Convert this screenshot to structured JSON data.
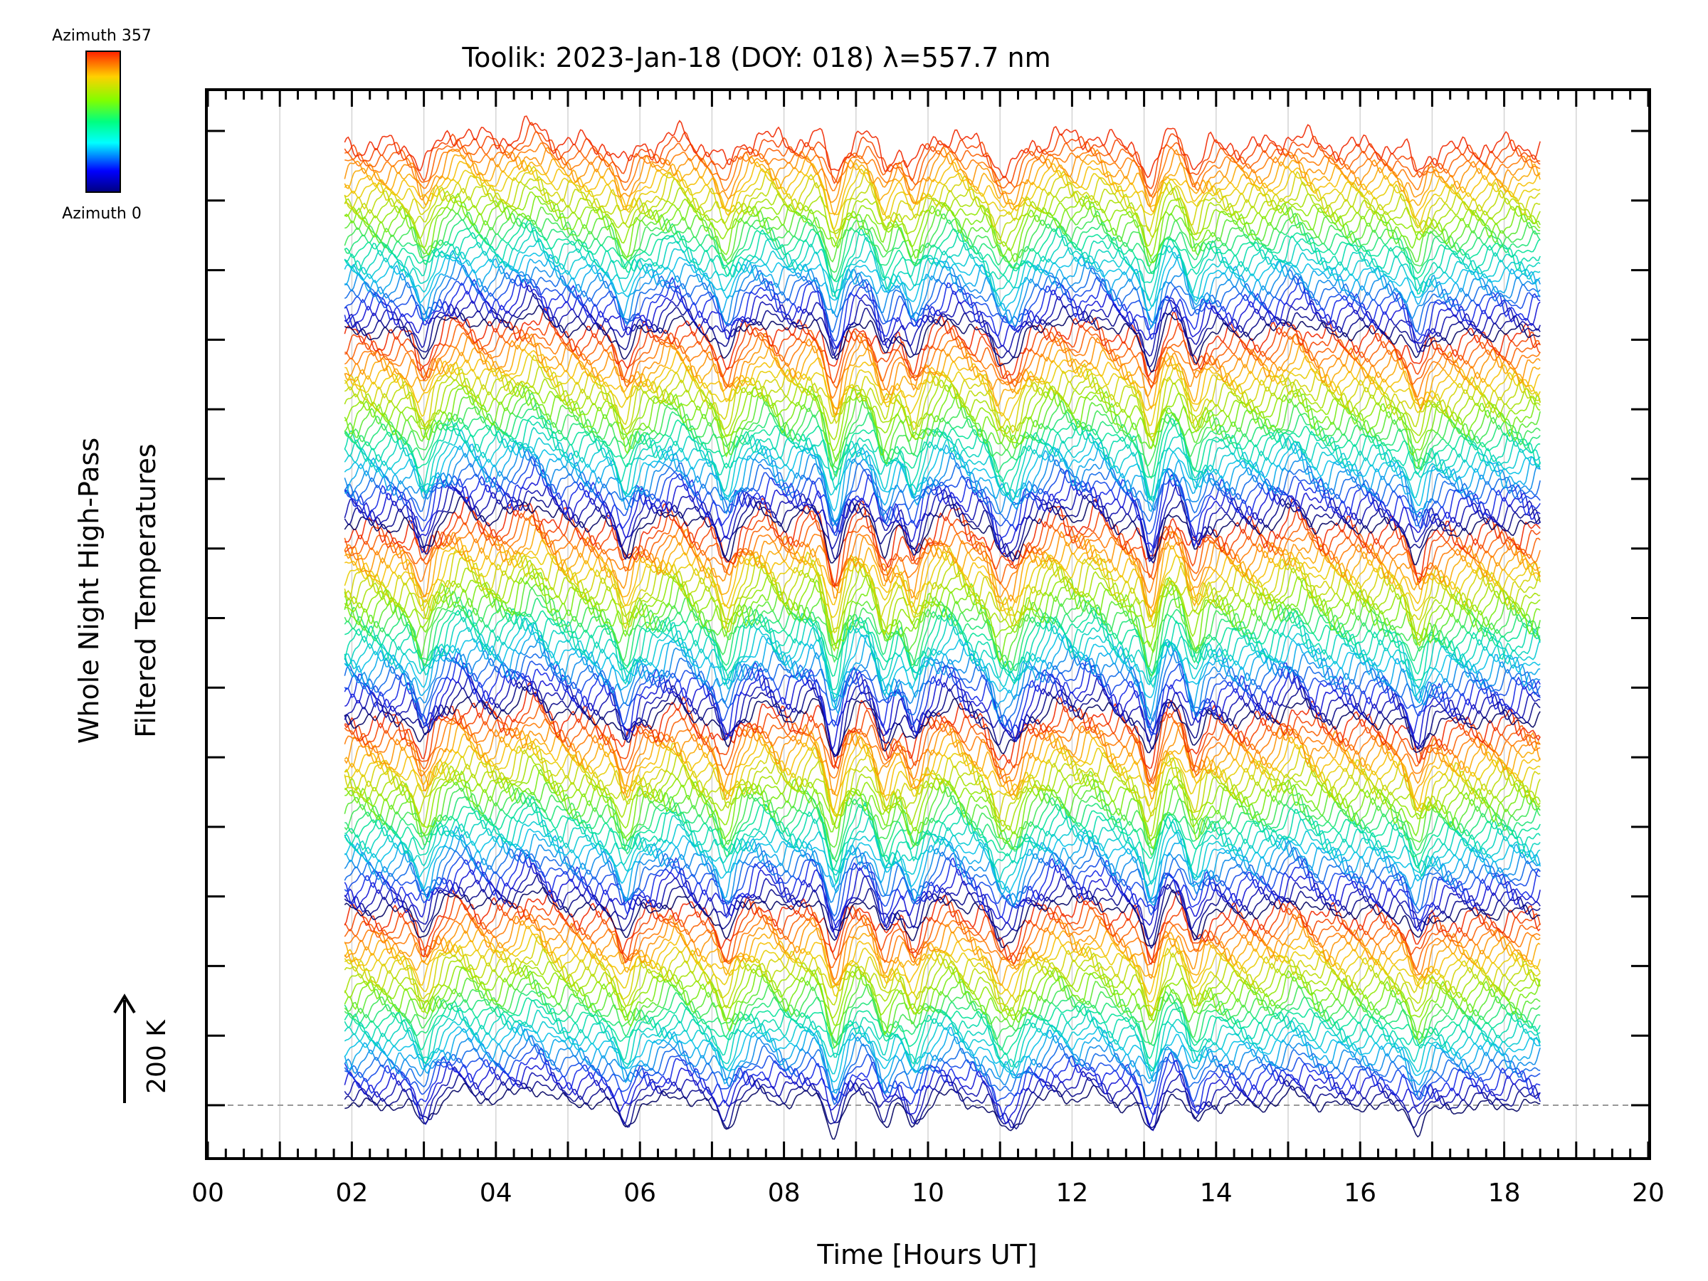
{
  "chart_data": {
    "type": "line",
    "title": "Toolik: 2023-Jan-18 (DOY: 018) λ=557.7 nm",
    "xlabel": "Time [Hours UT]",
    "ylabel_line1": "Whole Night High-Pass",
    "ylabel_line2": "Filtered Temperatures",
    "xlim": [
      0,
      20
    ],
    "x_tick_labels": [
      "00",
      "02",
      "04",
      "06",
      "08",
      "10",
      "12",
      "14",
      "16",
      "18",
      "20"
    ],
    "x_ticks": [
      0,
      2,
      4,
      6,
      8,
      10,
      12,
      14,
      16,
      18,
      20
    ],
    "y_tick_count": 15,
    "grid": true,
    "data_start_hour": 1.9,
    "data_end_hour": 18.5,
    "series_count": 150,
    "scale_bar_label": "200 K",
    "legend": {
      "top_label": "Azimuth 357",
      "bottom_label": "Azimuth 0",
      "colormap": "rainbow",
      "placement": "top-left"
    },
    "features": {
      "dip_hours": [
        3.0,
        5.8,
        7.2,
        8.7,
        9.4,
        9.8,
        11.0,
        11.2,
        13.1,
        13.7,
        16.8
      ],
      "peak_hours": [
        3.5,
        4.5,
        6.5,
        7.7,
        8.4,
        9.1,
        10.3,
        11.8,
        12.3,
        13.4,
        15.1
      ],
      "baseline_level_units": 0
    }
  }
}
